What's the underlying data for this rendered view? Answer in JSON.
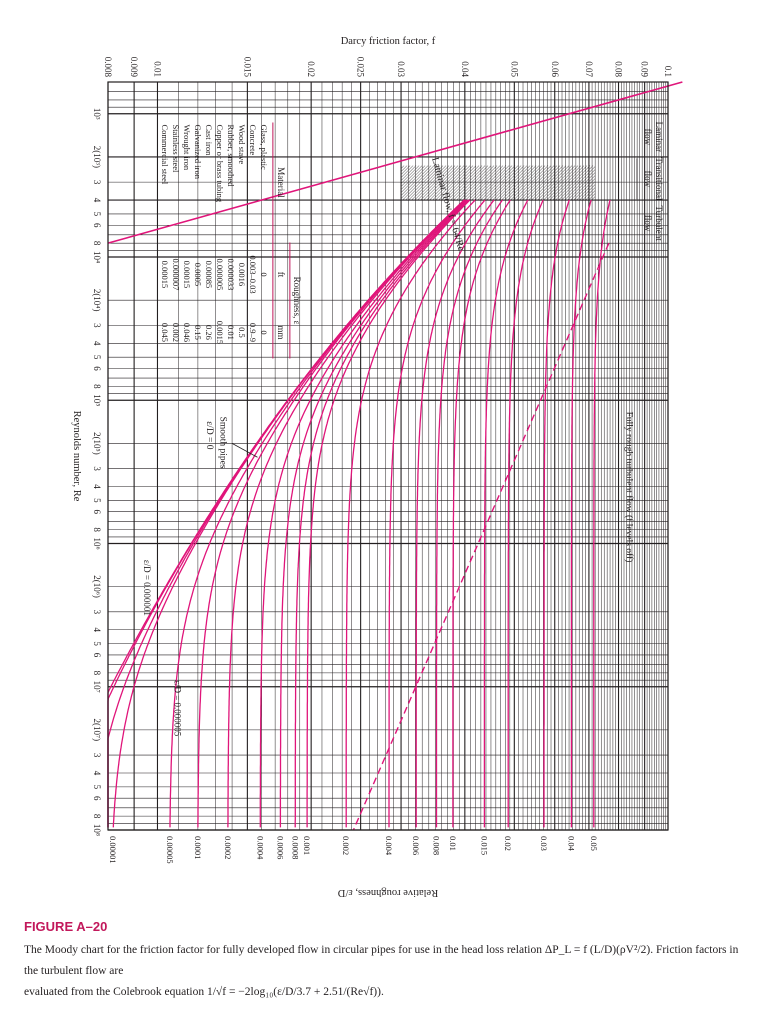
{
  "chart_data": {
    "type": "line",
    "title": "",
    "xlabel": "Reynolds number, Re",
    "ylabel": "Darcy friction factor, f",
    "y2label": "Relative roughness, ε/D",
    "x_scale": "log",
    "y_scale": "log",
    "xlim": [
      600,
      100000000
    ],
    "ylim": [
      0.008,
      0.1
    ],
    "grid": true,
    "x_tick_labels": [
      {
        "value": 1000,
        "label": "10³"
      },
      {
        "value": 2000,
        "label": "2(10³)"
      },
      {
        "value": 3000,
        "label": "3"
      },
      {
        "value": 4000,
        "label": "4"
      },
      {
        "value": 5000,
        "label": "5"
      },
      {
        "value": 6000,
        "label": "6"
      },
      {
        "value": 8000,
        "label": "8"
      },
      {
        "value": 10000,
        "label": "10⁴"
      },
      {
        "value": 20000,
        "label": "2(10⁴)"
      },
      {
        "value": 30000,
        "label": "3"
      },
      {
        "value": 40000,
        "label": "4"
      },
      {
        "value": 50000,
        "label": "5"
      },
      {
        "value": 60000,
        "label": "6"
      },
      {
        "value": 80000,
        "label": "8"
      },
      {
        "value": 100000,
        "label": "10⁵"
      },
      {
        "value": 200000,
        "label": "2(10⁵)"
      },
      {
        "value": 300000,
        "label": "3"
      },
      {
        "value": 400000,
        "label": "4"
      },
      {
        "value": 500000,
        "label": "5"
      },
      {
        "value": 600000,
        "label": "6"
      },
      {
        "value": 800000,
        "label": "8"
      },
      {
        "value": 1000000,
        "label": "10⁶"
      },
      {
        "value": 2000000,
        "label": "2(10⁶)"
      },
      {
        "value": 3000000,
        "label": "3"
      },
      {
        "value": 4000000,
        "label": "4"
      },
      {
        "value": 5000000,
        "label": "5"
      },
      {
        "value": 6000000,
        "label": "6"
      },
      {
        "value": 8000000,
        "label": "8"
      },
      {
        "value": 10000000,
        "label": "10⁷"
      },
      {
        "value": 20000000,
        "label": "2(10⁷)"
      },
      {
        "value": 30000000,
        "label": "3"
      },
      {
        "value": 40000000,
        "label": "4"
      },
      {
        "value": 50000000,
        "label": "5"
      },
      {
        "value": 60000000,
        "label": "6"
      },
      {
        "value": 80000000,
        "label": "8"
      },
      {
        "value": 100000000,
        "label": "10⁸"
      }
    ],
    "y_tick_labels": [
      {
        "value": 0.1,
        "label": "0.1"
      },
      {
        "value": 0.09,
        "label": "0.09"
      },
      {
        "value": 0.08,
        "label": "0.08"
      },
      {
        "value": 0.07,
        "label": "0.07"
      },
      {
        "value": 0.06,
        "label": "0.06"
      },
      {
        "value": 0.05,
        "label": "0.05"
      },
      {
        "value": 0.04,
        "label": "0.04"
      },
      {
        "value": 0.03,
        "label": "0.03"
      },
      {
        "value": 0.025,
        "label": "0.025"
      },
      {
        "value": 0.02,
        "label": "0.02"
      },
      {
        "value": 0.015,
        "label": "0.015"
      },
      {
        "value": 0.01,
        "label": "0.01"
      },
      {
        "value": 0.009,
        "label": "0.009"
      },
      {
        "value": 0.008,
        "label": "0.008"
      }
    ],
    "roughness_labels": [
      {
        "value": 0.05,
        "label": "0.05"
      },
      {
        "value": 0.04,
        "label": "0.04"
      },
      {
        "value": 0.03,
        "label": "0.03"
      },
      {
        "value": 0.02,
        "label": "0.02"
      },
      {
        "value": 0.015,
        "label": "0.015"
      },
      {
        "value": 0.01,
        "label": "0.01"
      },
      {
        "value": 0.008,
        "label": "0.008"
      },
      {
        "value": 0.006,
        "label": "0.006"
      },
      {
        "value": 0.004,
        "label": "0.004"
      },
      {
        "value": 0.002,
        "label": "0.002"
      },
      {
        "value": 0.001,
        "label": "0.001"
      },
      {
        "value": 0.0008,
        "label": "0.0008"
      },
      {
        "value": 0.0006,
        "label": "0.0006"
      },
      {
        "value": 0.0004,
        "label": "0.0004"
      },
      {
        "value": 0.0002,
        "label": "0.0002"
      },
      {
        "value": 0.0001,
        "label": "0.0001"
      },
      {
        "value": 5e-05,
        "label": "0.00005"
      },
      {
        "value": 1e-05,
        "label": "0.00001"
      }
    ],
    "curves": [
      {
        "rel_roughness": 0.05,
        "re": [
          4000,
          10000,
          100000,
          1000000,
          10000000,
          100000000
        ],
        "f": [
          0.0764,
          0.0732,
          0.0717,
          0.0716,
          0.0716,
          0.0716
        ]
      },
      {
        "rel_roughness": 0.04,
        "re": [
          4000,
          10000,
          100000,
          1000000,
          10000000,
          100000000
        ],
        "f": [
          0.0681,
          0.0647,
          0.0649,
          0.0648,
          0.0648,
          0.0648
        ]
      },
      {
        "rel_roughness": 0.03,
        "re": [
          4000,
          10000,
          100000,
          1000000,
          10000000,
          100000000
        ],
        "f": [
          0.0614,
          0.059,
          0.0572,
          0.0571,
          0.0571,
          0.0571
        ]
      },
      {
        "rel_roughness": 0.02,
        "re": [
          4000,
          10000,
          100000,
          1000000,
          10000000,
          100000000
        ],
        "f": [
          0.0568,
          0.0521,
          0.0491,
          0.0489,
          0.0489,
          0.0489
        ]
      },
      {
        "rel_roughness": 0.015,
        "re": [
          4000,
          10000,
          100000,
          1000000,
          10000000,
          100000000
        ],
        "f": [
          0.0543,
          0.0485,
          0.0441,
          0.0438,
          0.0438,
          0.0438
        ]
      },
      {
        "rel_roughness": 0.01,
        "re": [
          4000,
          10000,
          100000,
          1000000,
          10000000,
          100000000
        ],
        "f": [
          0.0518,
          0.0451,
          0.0385,
          0.038,
          0.038,
          0.038
        ]
      },
      {
        "rel_roughness": 0.008,
        "re": [
          4000,
          10000,
          100000,
          1000000,
          10000000,
          100000000
        ],
        "f": [
          0.0508,
          0.0436,
          0.0361,
          0.0355,
          0.0355,
          0.0355
        ]
      },
      {
        "rel_roughness": 0.006,
        "re": [
          4000,
          10000,
          100000,
          1000000,
          10000000,
          100000000
        ],
        "f": [
          0.0497,
          0.0421,
          0.0333,
          0.0325,
          0.0325,
          0.0325
        ]
      },
      {
        "rel_roughness": 0.004,
        "re": [
          4000,
          10000,
          100000,
          1000000,
          10000000,
          100000000
        ],
        "f": [
          0.0486,
          0.0404,
          0.0301,
          0.0289,
          0.0288,
          0.0288
        ]
      },
      {
        "rel_roughness": 0.002,
        "re": [
          4000,
          10000,
          100000,
          1000000,
          10000000,
          100000000
        ],
        "f": [
          0.0474,
          0.0385,
          0.0262,
          0.024,
          0.0238,
          0.0237
        ]
      },
      {
        "rel_roughness": 0.001,
        "re": [
          4000,
          10000,
          100000,
          1000000,
          10000000,
          100000000
        ],
        "f": [
          0.0467,
          0.0375,
          0.024,
          0.021,
          0.0205,
          0.0204
        ]
      },
      {
        "rel_roughness": 0.0008,
        "re": [
          4000,
          10000,
          100000,
          1000000,
          10000000,
          100000000
        ],
        "f": [
          0.0466,
          0.0373,
          0.0235,
          0.0201,
          0.0196,
          0.0195
        ]
      },
      {
        "rel_roughness": 0.0006,
        "re": [
          4000,
          10000,
          100000,
          1000000,
          10000000,
          100000000
        ],
        "f": [
          0.0465,
          0.0371,
          0.0229,
          0.0192,
          0.0185,
          0.0184
        ]
      },
      {
        "rel_roughness": 0.0004,
        "re": [
          4000,
          10000,
          100000,
          1000000,
          10000000,
          100000000
        ],
        "f": [
          0.0463,
          0.0369,
          0.0223,
          0.018,
          0.017,
          0.0169
        ]
      },
      {
        "rel_roughness": 0.0002,
        "re": [
          4000,
          10000,
          100000,
          1000000,
          10000000,
          100000000
        ],
        "f": [
          0.0461,
          0.0366,
          0.0194,
          0.0163,
          0.0147,
          0.0146
        ]
      },
      {
        "rel_roughness": 0.0001,
        "re": [
          4000,
          10000,
          100000,
          1000000,
          10000000,
          100000000
        ],
        "f": [
          0.046,
          0.0365,
          0.0185,
          0.015,
          0.013,
          0.0128
        ]
      },
      {
        "rel_roughness": 5e-05,
        "re": [
          4000,
          10000,
          100000,
          1000000,
          10000000,
          100000000
        ],
        "f": [
          0.046,
          0.0364,
          0.0182,
          0.0135,
          0.0117,
          0.0113
        ]
      },
      {
        "rel_roughness": 1e-05,
        "re": [
          4000,
          10000,
          100000,
          1000000,
          10000000,
          100000000
        ],
        "f": [
          0.046,
          0.0362,
          0.018,
          0.0122,
          0.0094,
          0.0087
        ]
      },
      {
        "rel_roughness": 5e-06,
        "re": [
          4000,
          10000,
          100000,
          1000000,
          10000000,
          100000000
        ],
        "f": [
          0.046,
          0.0362,
          0.018,
          0.012,
          0.0092,
          0.0082
        ]
      },
      {
        "rel_roughness": 1e-06,
        "re": [
          4000,
          10000,
          100000,
          1000000,
          10000000,
          100000000
        ],
        "f": [
          0.046,
          0.0361,
          0.018,
          0.0117,
          0.0086,
          0.0077
        ]
      },
      {
        "rel_roughness": 0,
        "re": [
          4000,
          10000,
          100000,
          1000000,
          10000000,
          100000000
        ],
        "f": [
          0.046,
          0.036,
          0.018,
          0.0117,
          0.0083,
          0.0068
        ]
      }
    ],
    "laminar_line": {
      "re": [
        600,
        8000
      ],
      "f": [
        0.1067,
        0.008
      ]
    },
    "rough_boundary": {
      "re": [
        8000,
        100000000
      ],
      "f": [
        0.0766,
        0.0242
      ]
    },
    "annotations": {
      "laminar_region": [
        "Laminar",
        "flow"
      ],
      "transitional_region": [
        "Transitional",
        "flow"
      ],
      "turbulent_region": [
        "Turbulent",
        "flow"
      ],
      "fully_rough": "Fully rough turbulent flow (f levels off)",
      "laminar_equation": "Laminar flow, f = 64/Re",
      "smooth_pipes": [
        "Smooth pipes",
        "ε/D = 0"
      ],
      "curve_label_1": "ε/D = 0.000001",
      "curve_label_2": "ε/D = 0.000005"
    },
    "roughness_table": {
      "group_header": "Roughness, ε",
      "columns": [
        "Material",
        "ft",
        "mm"
      ],
      "rows": [
        [
          "Glass, plastic",
          "0",
          "0"
        ],
        [
          "Concrete",
          "0.003–0.03",
          "0.9–9"
        ],
        [
          "Wood stave",
          "0.0016",
          "0.5"
        ],
        [
          "Rubber, smoothed",
          "0.000033",
          "0.01"
        ],
        [
          "Copper or brass tubing",
          "0.000005",
          "0.0015"
        ],
        [
          "Cast iron",
          "0.00085",
          "0.26"
        ],
        [
          "Galvanized iron",
          "0.0005",
          "0.15"
        ],
        [
          "Wrought iron",
          "0.00015",
          "0.046"
        ],
        [
          "Stainless steel",
          "0.000007",
          "0.002"
        ],
        [
          "Commercial steel",
          "0.00015",
          "0.045"
        ]
      ]
    },
    "colors": {
      "curve": "#e0157a",
      "grid": "#231f20",
      "background": "#ffffff",
      "accent": "#c2185b"
    }
  },
  "caption": {
    "label": "FIGURE A–20",
    "line1": "The Moody chart for the friction factor for fully developed flow in circular pipes for use in the head loss relation ΔP_L = f (L/D)(ρV²/2). Friction factors in the turbulent flow are",
    "line2": "evaluated from the Colebrook equation 1/√f = −2log₁₀(ε/D/3.7 + 2.51/(Re√f))."
  }
}
